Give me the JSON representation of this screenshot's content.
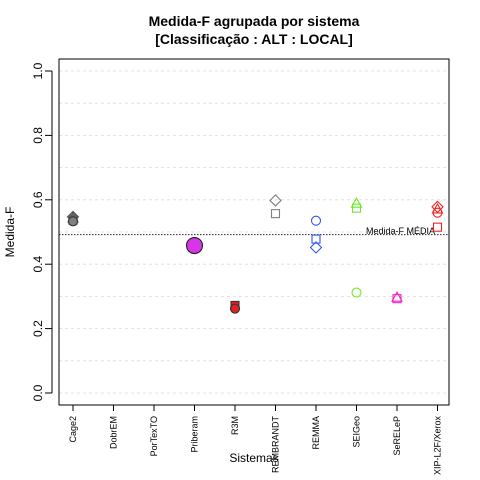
{
  "chart_data": {
    "type": "scatter",
    "title": "Medida-F agrupada por sistema",
    "subtitle": "[Classificação : ALT : LOCAL]",
    "xlabel": "Sistemas",
    "ylabel": "Medida-F",
    "ylim": [
      0,
      1
    ],
    "yticks": [
      "0.0",
      "0.2",
      "0.4",
      "0.6",
      "0.8",
      "1.0"
    ],
    "categories": [
      "Cage2",
      "DobrEM",
      "PorTexTO",
      "Priberam",
      "R3M",
      "REMBRANDT",
      "REMMA",
      "SEIGeo",
      "SeRELeP",
      "XIP-L2F/Xerox"
    ],
    "grid": true,
    "reference_line": {
      "label": "Medida-F MÉDIA",
      "value": 0.492
    },
    "points": [
      {
        "category": "Cage2",
        "value": 0.547,
        "shape": "diamond",
        "color": "#555555",
        "fill": "#808080"
      },
      {
        "category": "Cage2",
        "value": 0.542,
        "shape": "triangle",
        "color": "#555555",
        "fill": "#808080"
      },
      {
        "category": "Cage2",
        "value": 0.537,
        "shape": "square",
        "color": "#555555",
        "fill": "#808080"
      },
      {
        "category": "Cage2",
        "value": 0.533,
        "shape": "circle",
        "color": "#333333",
        "fill": "#808080"
      },
      {
        "category": "Priberam",
        "value": 0.458,
        "shape": "circle-large",
        "color": "#222222",
        "fill": "#d835e8"
      },
      {
        "category": "R3M",
        "value": 0.272,
        "shape": "square",
        "color": "#333333",
        "fill": "#dd2222"
      },
      {
        "category": "R3M",
        "value": 0.262,
        "shape": "circle",
        "color": "#333333",
        "fill": "#dd2222"
      },
      {
        "category": "REMBRANDT",
        "value": 0.598,
        "shape": "diamond",
        "color": "#808080",
        "fill": "none"
      },
      {
        "category": "REMBRANDT",
        "value": 0.557,
        "shape": "square",
        "color": "#808080",
        "fill": "none"
      },
      {
        "category": "REMMA",
        "value": 0.535,
        "shape": "circle",
        "color": "#3355ee",
        "fill": "none"
      },
      {
        "category": "REMMA",
        "value": 0.478,
        "shape": "square",
        "color": "#3355ee",
        "fill": "none"
      },
      {
        "category": "REMMA",
        "value": 0.452,
        "shape": "diamond",
        "color": "#3355ee",
        "fill": "none"
      },
      {
        "category": "SEIGeo",
        "value": 0.588,
        "shape": "triangle",
        "color": "#66ee22",
        "fill": "none"
      },
      {
        "category": "SEIGeo",
        "value": 0.574,
        "shape": "square",
        "color": "#66ee22",
        "fill": "none"
      },
      {
        "category": "SEIGeo",
        "value": 0.312,
        "shape": "circle",
        "color": "#66ee22",
        "fill": "none"
      },
      {
        "category": "SeRELeP",
        "value": 0.296,
        "shape": "triangle",
        "color": "#ee22cc",
        "fill": "none"
      },
      {
        "category": "SeRELeP",
        "value": 0.293,
        "shape": "square",
        "color": "#ee22cc",
        "fill": "none"
      },
      {
        "category": "XIP-L2F/Xerox",
        "value": 0.578,
        "shape": "diamond",
        "color": "#ee2222",
        "fill": "none"
      },
      {
        "category": "XIP-L2F/Xerox",
        "value": 0.57,
        "shape": "triangle",
        "color": "#ee2222",
        "fill": "none"
      },
      {
        "category": "XIP-L2F/Xerox",
        "value": 0.56,
        "shape": "circle",
        "color": "#ee2222",
        "fill": "none"
      },
      {
        "category": "XIP-L2F/Xerox",
        "value": 0.515,
        "shape": "square",
        "color": "#ee2222",
        "fill": "none"
      }
    ]
  }
}
